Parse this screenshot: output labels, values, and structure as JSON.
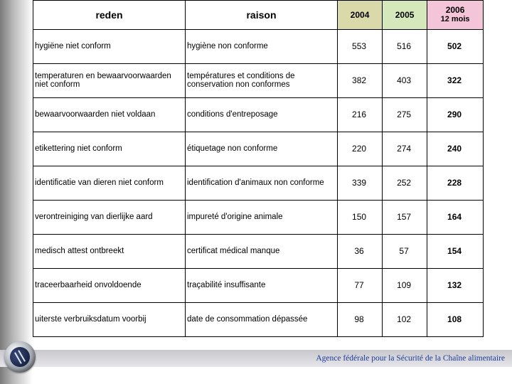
{
  "table": {
    "headers": {
      "reden": "reden",
      "raison": "raison",
      "y2004": "2004",
      "y2005": "2005",
      "y2006_line1": "2006",
      "y2006_line2": "12 mois"
    },
    "header_colors": {
      "y2004_bg": "#d9d9aa",
      "y2005_bg": "#d4e8bc",
      "y2006_bg": "#f4c4d8"
    },
    "rows": [
      {
        "reden": "hygiëne niet conform",
        "raison": "hygiène non conforme",
        "y2004": "553",
        "y2005": "516",
        "y2006": "502"
      },
      {
        "reden": "temperaturen en bewaarvoorwaarden niet conform",
        "raison": "températures et conditions de conservation non conformes",
        "y2004": "382",
        "y2005": "403",
        "y2006": "322"
      },
      {
        "reden": "bewaarvoorwaarden niet voldaan",
        "raison": "conditions d'entreposage",
        "y2004": "216",
        "y2005": "275",
        "y2006": "290"
      },
      {
        "reden": "etikettering niet conform",
        "raison": "étiquetage non conforme",
        "y2004": "220",
        "y2005": "274",
        "y2006": "240"
      },
      {
        "reden": "identificatie van dieren niet conform",
        "raison": "identification d'animaux non conforme",
        "y2004": "339",
        "y2005": "252",
        "y2006": "228"
      },
      {
        "reden": "verontreiniging van dierlijke aard",
        "raison": "impureté d'origine animale",
        "y2004": "150",
        "y2005": "157",
        "y2006": "164"
      },
      {
        "reden": "medisch attest ontbreekt",
        "raison": "certificat médical manque",
        "y2004": "36",
        "y2005": "57",
        "y2006": "154"
      },
      {
        "reden": "traceerbaarheid onvoldoende",
        "raison": "traçabilité insuffisante",
        "y2004": "77",
        "y2005": "109",
        "y2006": "132"
      },
      {
        "reden": "uiterste verbruiksdatum voorbij",
        "raison": "date de consommation dépassée",
        "y2004": "98",
        "y2005": "102",
        "y2006": "108"
      }
    ]
  },
  "footer": "Agence fédérale pour la Sécurité de la Chaîne alimentaire",
  "colors": {
    "footer_text": "#1a3a9c",
    "left_gradient_dark": "#7b7b7b"
  }
}
